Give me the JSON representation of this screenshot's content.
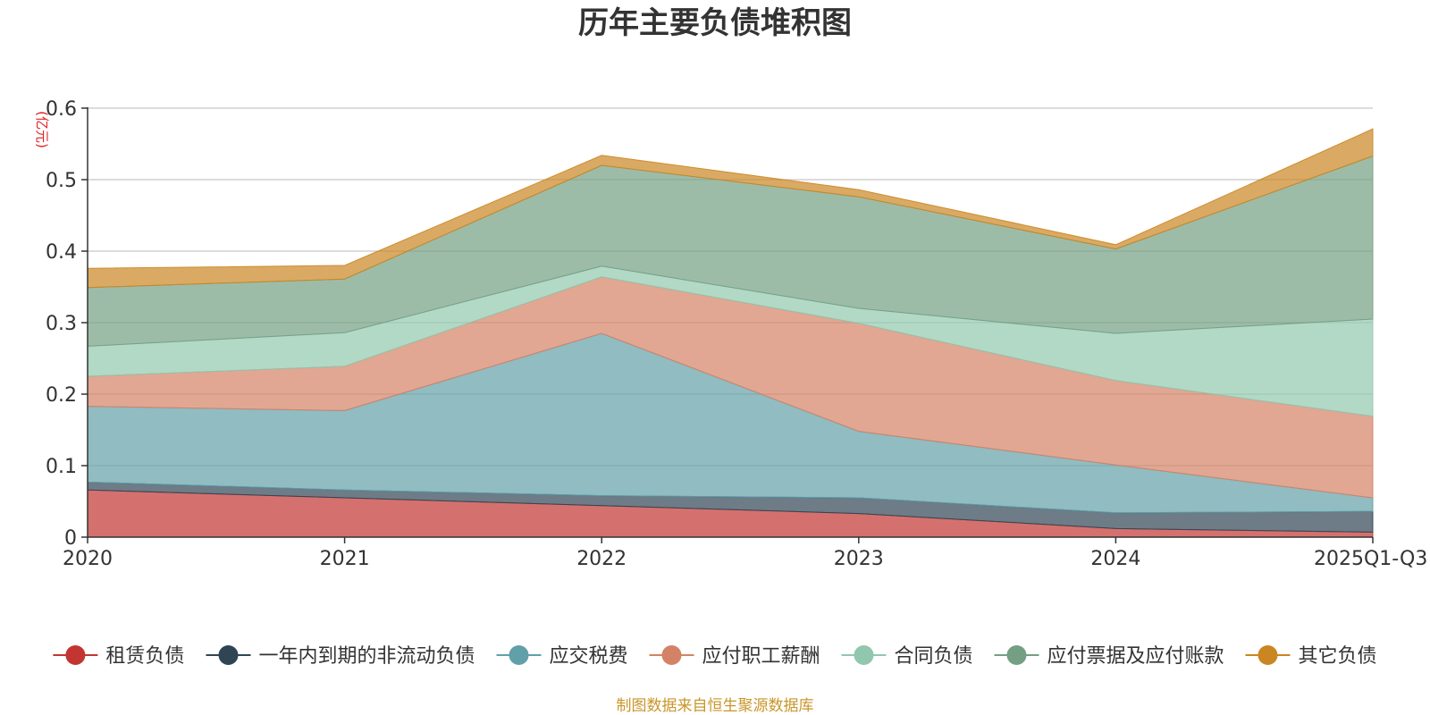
{
  "chart_data": {
    "type": "area",
    "stacked": true,
    "title": "历年主要负债堆积图",
    "unit_label": "(亿元)",
    "categories": [
      "2020",
      "2021",
      "2022",
      "2023",
      "2024",
      "2025Q1-Q3"
    ],
    "ylim": [
      0,
      0.6
    ],
    "yticks": [
      0,
      0.1,
      0.2,
      0.3,
      0.4,
      0.5,
      0.6
    ],
    "ytick_labels": [
      "0",
      "0.1",
      "0.2",
      "0.3",
      "0.4",
      "0.5",
      "0.6"
    ],
    "grid": true,
    "legend_position": "bottom",
    "series": [
      {
        "name": "租赁负债",
        "color": "#c23531",
        "values": [
          0.066,
          0.055,
          0.044,
          0.033,
          0.012,
          0.007
        ]
      },
      {
        "name": "一年内到期的非流动负债",
        "color": "#2f4554",
        "values": [
          0.011,
          0.011,
          0.014,
          0.022,
          0.022,
          0.029
        ]
      },
      {
        "name": "应交税费",
        "color": "#61a0a8",
        "values": [
          0.106,
          0.111,
          0.227,
          0.093,
          0.067,
          0.019
        ]
      },
      {
        "name": "应付职工薪酬",
        "color": "#d48265",
        "values": [
          0.042,
          0.062,
          0.079,
          0.151,
          0.118,
          0.114
        ]
      },
      {
        "name": "合同负债",
        "color": "#91c7ae",
        "values": [
          0.042,
          0.047,
          0.015,
          0.021,
          0.066,
          0.136
        ]
      },
      {
        "name": "应付票据及应付账款",
        "color": "#749f83",
        "values": [
          0.082,
          0.075,
          0.141,
          0.156,
          0.118,
          0.228
        ]
      },
      {
        "name": "其它负债",
        "color": "#ca8622",
        "values": [
          0.027,
          0.019,
          0.014,
          0.01,
          0.006,
          0.038
        ]
      }
    ],
    "source_note": "制图数据来自恒生聚源数据库"
  }
}
